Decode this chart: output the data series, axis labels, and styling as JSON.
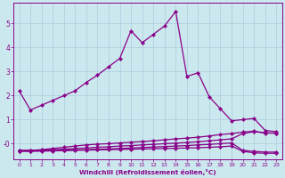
{
  "xlabel": "Windchill (Refroidissement éolien,°C)",
  "bg_color": "#cce8ef",
  "grid_color": "#aaccdd",
  "line_color": "#880088",
  "xlim": [
    -0.5,
    23.5
  ],
  "ylim": [
    -0.65,
    5.85
  ],
  "yticks": [
    0,
    1,
    2,
    3,
    4,
    5
  ],
  "ytick_labels": [
    "-0",
    "1",
    "2",
    "3",
    "4",
    "5"
  ],
  "xticks": [
    0,
    1,
    2,
    3,
    4,
    5,
    6,
    7,
    8,
    9,
    10,
    11,
    12,
    13,
    14,
    15,
    16,
    17,
    18,
    19,
    20,
    21,
    22,
    23
  ],
  "line_big_x": [
    0,
    1,
    2,
    3,
    4,
    5,
    6,
    7,
    8,
    9,
    10,
    11,
    12,
    13,
    14,
    15,
    16,
    17,
    18,
    19,
    20,
    21,
    22,
    23
  ],
  "line_big_y": [
    2.2,
    1.4,
    1.6,
    1.8,
    2.0,
    2.2,
    2.55,
    2.85,
    3.2,
    3.55,
    4.7,
    4.2,
    4.55,
    4.9,
    5.5,
    2.8,
    2.95,
    1.95,
    1.45,
    0.95,
    1.0,
    1.05,
    0.55,
    0.5
  ],
  "line2_x": [
    0,
    1,
    2,
    3,
    4,
    5,
    6,
    7,
    8,
    9,
    10,
    11,
    12,
    13,
    14,
    15,
    16,
    17,
    18,
    19,
    20,
    21,
    22,
    23
  ],
  "line2_y": [
    -0.28,
    -0.28,
    -0.25,
    -0.2,
    -0.15,
    -0.1,
    -0.05,
    -0.02,
    0.0,
    0.03,
    0.06,
    0.09,
    0.12,
    0.16,
    0.2,
    0.23,
    0.27,
    0.32,
    0.38,
    0.42,
    0.48,
    0.52,
    0.45,
    0.44
  ],
  "line3_x": [
    0,
    1,
    2,
    3,
    4,
    5,
    6,
    7,
    8,
    9,
    10,
    11,
    12,
    13,
    14,
    15,
    16,
    17,
    18,
    19,
    20,
    21,
    22,
    23
  ],
  "line3_y": [
    -0.28,
    -0.28,
    -0.27,
    -0.25,
    -0.23,
    -0.2,
    -0.18,
    -0.15,
    -0.13,
    -0.1,
    -0.08,
    -0.05,
    -0.03,
    0.0,
    0.02,
    0.05,
    0.08,
    0.12,
    0.16,
    0.2,
    0.42,
    0.5,
    0.44,
    0.44
  ],
  "line4_x": [
    0,
    1,
    2,
    3,
    4,
    5,
    6,
    7,
    8,
    9,
    10,
    11,
    12,
    13,
    14,
    15,
    16,
    17,
    18,
    19,
    20,
    21,
    22,
    23
  ],
  "line4_y": [
    -0.3,
    -0.3,
    -0.29,
    -0.28,
    -0.27,
    -0.26,
    -0.25,
    -0.23,
    -0.22,
    -0.2,
    -0.18,
    -0.16,
    -0.14,
    -0.12,
    -0.1,
    -0.08,
    -0.05,
    -0.03,
    0.0,
    0.03,
    -0.28,
    -0.32,
    -0.35,
    -0.35
  ],
  "line5_x": [
    0,
    1,
    2,
    3,
    4,
    5,
    6,
    7,
    8,
    9,
    10,
    11,
    12,
    13,
    14,
    15,
    16,
    17,
    18,
    19,
    20,
    21,
    22,
    23
  ],
  "line5_y": [
    -0.32,
    -0.32,
    -0.31,
    -0.3,
    -0.29,
    -0.28,
    -0.27,
    -0.26,
    -0.25,
    -0.24,
    -0.23,
    -0.22,
    -0.21,
    -0.2,
    -0.19,
    -0.18,
    -0.17,
    -0.15,
    -0.13,
    -0.1,
    -0.32,
    -0.38,
    -0.4,
    -0.4
  ]
}
